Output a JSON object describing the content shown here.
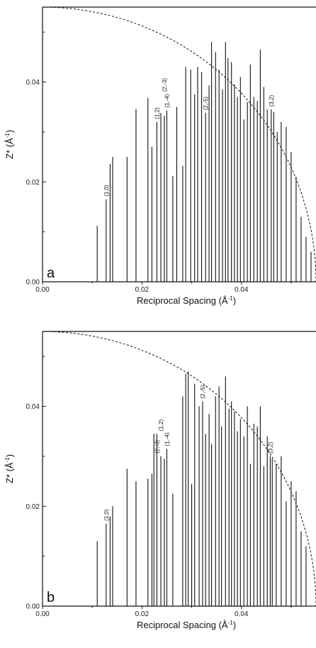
{
  "chart_data": [
    {
      "type": "bar",
      "panel_label": "a",
      "xlabel": "Reciprocal Spacing (Å",
      "xlabel_sup": "-1",
      "xlabel_close": ")",
      "ylabel": "Z* (Å",
      "ylabel_sup": "-1",
      "ylabel_close": ")",
      "xlim": [
        0.0,
        0.055
      ],
      "ylim": [
        0.0,
        0.055
      ],
      "xticks": [
        0.0,
        0.02,
        0.04
      ],
      "xtick_labels": [
        "0.00",
        "0.02",
        "0.04"
      ],
      "yticks": [
        0.0,
        0.02,
        0.04
      ],
      "ytick_labels": [
        "0.00",
        "0.02",
        "0.04"
      ],
      "grid": false,
      "color": "#111111",
      "x": [
        0.011,
        0.0128,
        0.0136,
        0.0141,
        0.017,
        0.0188,
        0.0212,
        0.022,
        0.023,
        0.0238,
        0.0245,
        0.025,
        0.0262,
        0.027,
        0.0282,
        0.0288,
        0.0298,
        0.0306,
        0.0312,
        0.032,
        0.0328,
        0.0335,
        0.034,
        0.0348,
        0.0355,
        0.0362,
        0.0368,
        0.0373,
        0.038,
        0.0386,
        0.0392,
        0.0398,
        0.0405,
        0.0412,
        0.0418,
        0.0425,
        0.0432,
        0.0438,
        0.0445,
        0.0452,
        0.046,
        0.0465,
        0.0472,
        0.048,
        0.049,
        0.05,
        0.051,
        0.052,
        0.053,
        0.054
      ],
      "values": [
        0.0112,
        0.0165,
        0.0236,
        0.025,
        0.025,
        0.0346,
        0.0368,
        0.027,
        0.032,
        0.0338,
        0.0332,
        0.0343,
        0.0212,
        0.035,
        0.0232,
        0.043,
        0.0425,
        0.0375,
        0.043,
        0.042,
        0.0338,
        0.0393,
        0.048,
        0.046,
        0.0425,
        0.0385,
        0.048,
        0.0448,
        0.044,
        0.0395,
        0.037,
        0.041,
        0.0325,
        0.036,
        0.0435,
        0.037,
        0.0362,
        0.0465,
        0.039,
        0.0345,
        0.0345,
        0.034,
        0.03,
        0.032,
        0.031,
        0.026,
        0.021,
        0.013,
        0.009,
        0.006
      ],
      "annotations": [
        {
          "text": "(1,0)",
          "x": 0.0128,
          "y": 0.0165
        },
        {
          "text": "(1,2)",
          "x": 0.023,
          "y": 0.032
        },
        {
          "text": "(1,-4)",
          "x": 0.025,
          "y": 0.0343
        },
        {
          "text": "(2,-3)",
          "x": 0.0245,
          "y": 0.0375
        },
        {
          "text": "(2,-5)",
          "x": 0.0328,
          "y": 0.0338
        },
        {
          "text": "(3,2)",
          "x": 0.046,
          "y": 0.0345
        }
      ],
      "reference_curve": {
        "style": "dashed",
        "shape": "quarter-circle",
        "y_at_x0": 0.055,
        "y_zero_at_x": 0.055
      }
    },
    {
      "type": "bar",
      "panel_label": "b",
      "xlabel": "Reciprocal Spacing (Å",
      "xlabel_sup": "-1",
      "xlabel_close": ")",
      "ylabel": "Z* (Å",
      "ylabel_sup": "-1",
      "ylabel_close": ")",
      "xlim": [
        0.0,
        0.055
      ],
      "ylim": [
        0.0,
        0.055
      ],
      "xticks": [
        0.0,
        0.02,
        0.04
      ],
      "xtick_labels": [
        "0.00",
        "0.02",
        "0.04"
      ],
      "yticks": [
        0.0,
        0.02,
        0.04
      ],
      "ytick_labels": [
        "0.00",
        "0.02",
        "0.04"
      ],
      "grid": false,
      "color": "#111111",
      "x": [
        0.011,
        0.0128,
        0.0136,
        0.0141,
        0.017,
        0.0188,
        0.0212,
        0.022,
        0.0224,
        0.023,
        0.0238,
        0.0245,
        0.025,
        0.0262,
        0.0282,
        0.0288,
        0.0293,
        0.03,
        0.0306,
        0.0315,
        0.0322,
        0.0328,
        0.0335,
        0.034,
        0.0348,
        0.0355,
        0.036,
        0.0368,
        0.0375,
        0.038,
        0.0386,
        0.0392,
        0.0398,
        0.0405,
        0.0412,
        0.0418,
        0.0425,
        0.0432,
        0.0438,
        0.0445,
        0.0452,
        0.0458,
        0.0462,
        0.047,
        0.048,
        0.049,
        0.05,
        0.051,
        0.052,
        0.053
      ],
      "values": [
        0.013,
        0.0165,
        0.018,
        0.02,
        0.0275,
        0.025,
        0.0255,
        0.0265,
        0.0345,
        0.0345,
        0.03,
        0.0295,
        0.0315,
        0.0225,
        0.042,
        0.0465,
        0.047,
        0.0245,
        0.0445,
        0.04,
        0.041,
        0.0345,
        0.0385,
        0.0325,
        0.042,
        0.044,
        0.036,
        0.046,
        0.0395,
        0.041,
        0.039,
        0.035,
        0.0375,
        0.034,
        0.04,
        0.0285,
        0.0365,
        0.036,
        0.04,
        0.028,
        0.034,
        0.03,
        0.0295,
        0.0285,
        0.03,
        0.021,
        0.025,
        0.023,
        0.015,
        0.012
      ],
      "annotations": [
        {
          "text": "(1,0)",
          "x": 0.0128,
          "y": 0.0165
        },
        {
          "text": "(2,-3)",
          "x": 0.023,
          "y": 0.03
        },
        {
          "text": "(1,2)",
          "x": 0.0238,
          "y": 0.0345
        },
        {
          "text": "(1,-4)",
          "x": 0.025,
          "y": 0.0315
        },
        {
          "text": "(2,-5)",
          "x": 0.0322,
          "y": 0.041
        },
        {
          "text": "(3,2)",
          "x": 0.0458,
          "y": 0.03
        }
      ],
      "reference_curve": {
        "style": "dashed",
        "shape": "quarter-circle",
        "y_at_x0": 0.055,
        "y_zero_at_x": 0.055
      }
    }
  ]
}
